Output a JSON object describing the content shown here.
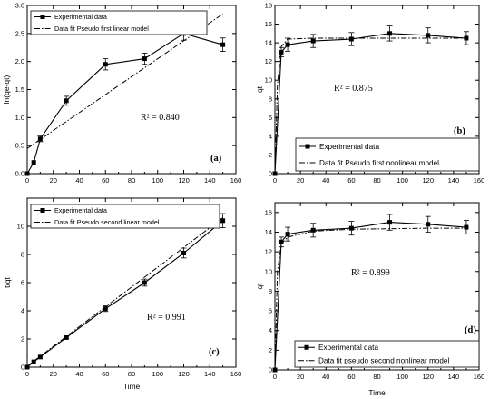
{
  "chart_data": [
    {
      "id": "a",
      "type": "line",
      "panel_label": "(a)",
      "xlabel": "",
      "ylabel": "ln(qe-qt)",
      "xlim": [
        0,
        160
      ],
      "ylim": [
        0.0,
        3.0
      ],
      "xticks": [
        0,
        20,
        40,
        60,
        80,
        100,
        120,
        140,
        160
      ],
      "yticks": [
        0.0,
        0.5,
        1.0,
        1.5,
        2.0,
        2.5,
        3.0
      ],
      "xtick_labels": [
        "0",
        "20",
        "40",
        "60",
        "80",
        "100",
        "120",
        "140",
        "160"
      ],
      "ytick_labels": [
        "0.0",
        "0.5",
        "1.0",
        "1.5",
        "2.0",
        "2.5",
        "3.0"
      ],
      "annotation": "R² = 0.840",
      "legend_position": "top-left",
      "series": [
        {
          "name": "Experimental data",
          "style": "marker-line",
          "x": [
            0,
            5,
            10,
            30,
            60,
            90,
            120,
            150
          ],
          "y": [
            0.0,
            0.2,
            0.62,
            1.3,
            1.95,
            2.05,
            2.5,
            2.3
          ],
          "err": [
            0,
            0,
            0.05,
            0.08,
            0.1,
            0.1,
            0.12,
            0.12
          ]
        },
        {
          "name": "Data fit Pseudo first linear model",
          "style": "dash-dot",
          "x": [
            0,
            150
          ],
          "y": [
            0.45,
            2.85
          ]
        }
      ]
    },
    {
      "id": "b",
      "type": "line",
      "panel_label": "(b)",
      "xlabel": "",
      "ylabel": "qt",
      "xlim": [
        0,
        160
      ],
      "ylim": [
        0,
        18
      ],
      "xticks": [
        0,
        20,
        40,
        60,
        80,
        100,
        120,
        140,
        160
      ],
      "yticks": [
        0,
        2,
        4,
        6,
        8,
        10,
        12,
        14,
        16,
        18
      ],
      "xtick_labels": [
        "0",
        "20",
        "40",
        "60",
        "80",
        "100",
        "120",
        "140",
        "160"
      ],
      "ytick_labels": [
        "0",
        "2",
        "4",
        "6",
        "8",
        "10",
        "12",
        "14",
        "16",
        "18"
      ],
      "annotation": "R² = 0.875",
      "legend_position": "bottom-right",
      "series": [
        {
          "name": "Experimental data",
          "style": "marker-line",
          "x": [
            0,
            5,
            10,
            30,
            60,
            90,
            120,
            150
          ],
          "y": [
            0,
            13.0,
            13.8,
            14.2,
            14.4,
            15.0,
            14.8,
            14.5
          ],
          "err": [
            0,
            0.5,
            0.7,
            0.7,
            0.7,
            0.8,
            0.8,
            0.7
          ]
        },
        {
          "name": "Data fit Pseudo first nonlinear model",
          "style": "dash-dot",
          "x": [
            0,
            2,
            5,
            10,
            30,
            60,
            90,
            120,
            150
          ],
          "y": [
            0,
            9.5,
            13.6,
            14.4,
            14.5,
            14.5,
            14.5,
            14.5,
            14.5
          ]
        }
      ]
    },
    {
      "id": "c",
      "type": "line",
      "panel_label": "(c)",
      "xlabel": "Time",
      "ylabel": "t/qt",
      "xlim": [
        0,
        160
      ],
      "ylim": [
        0,
        12
      ],
      "xticks": [
        0,
        20,
        40,
        60,
        80,
        100,
        120,
        140,
        160
      ],
      "yticks": [
        0,
        2,
        4,
        6,
        8,
        10
      ],
      "xtick_labels": [
        "0",
        "20",
        "40",
        "60",
        "80",
        "100",
        "120",
        "140",
        "160"
      ],
      "ytick_labels": [
        "0",
        "2",
        "4",
        "6",
        "8",
        "10"
      ],
      "annotation": "R² = 0.991",
      "legend_position": "top-left",
      "series": [
        {
          "name": "Experimental data",
          "style": "marker-line",
          "x": [
            0,
            5,
            10,
            30,
            60,
            90,
            120,
            150
          ],
          "y": [
            0,
            0.38,
            0.72,
            2.1,
            4.15,
            6.0,
            8.1,
            10.4
          ],
          "err": [
            0,
            0,
            0,
            0.08,
            0.2,
            0.25,
            0.35,
            0.5
          ]
        },
        {
          "name": "Data fit Pseudo second linear model",
          "style": "dash-dot",
          "x": [
            0,
            150
          ],
          "y": [
            0.07,
            10.6
          ]
        }
      ]
    },
    {
      "id": "d",
      "type": "line",
      "panel_label": "(d)",
      "xlabel": "Time",
      "ylabel": "qt",
      "xlim": [
        0,
        160
      ],
      "ylim": [
        0,
        17
      ],
      "xticks": [
        0,
        20,
        40,
        60,
        80,
        100,
        120,
        140,
        160
      ],
      "yticks": [
        0,
        2,
        4,
        6,
        8,
        10,
        12,
        14,
        16
      ],
      "xtick_labels": [
        "0",
        "20",
        "40",
        "60",
        "80",
        "100",
        "120",
        "140",
        "160"
      ],
      "ytick_labels": [
        "0",
        "2",
        "4",
        "6",
        "8",
        "10",
        "12",
        "14",
        "16"
      ],
      "annotation": "R² = 0.899",
      "legend_position": "bottom-right",
      "series": [
        {
          "name": "Experimental data",
          "style": "marker-line",
          "x": [
            0,
            5,
            10,
            30,
            60,
            90,
            120,
            150
          ],
          "y": [
            0,
            13.0,
            13.8,
            14.2,
            14.4,
            15.0,
            14.8,
            14.5
          ],
          "err": [
            0,
            0.5,
            0.7,
            0.7,
            0.7,
            0.8,
            0.8,
            0.7
          ]
        },
        {
          "name": "Data fit pseudo second nonlinear model",
          "style": "dash-dot",
          "x": [
            0,
            2,
            5,
            10,
            30,
            60,
            90,
            120,
            150
          ],
          "y": [
            0,
            10.0,
            12.8,
            13.5,
            14.1,
            14.3,
            14.35,
            14.4,
            14.4
          ]
        }
      ]
    }
  ]
}
